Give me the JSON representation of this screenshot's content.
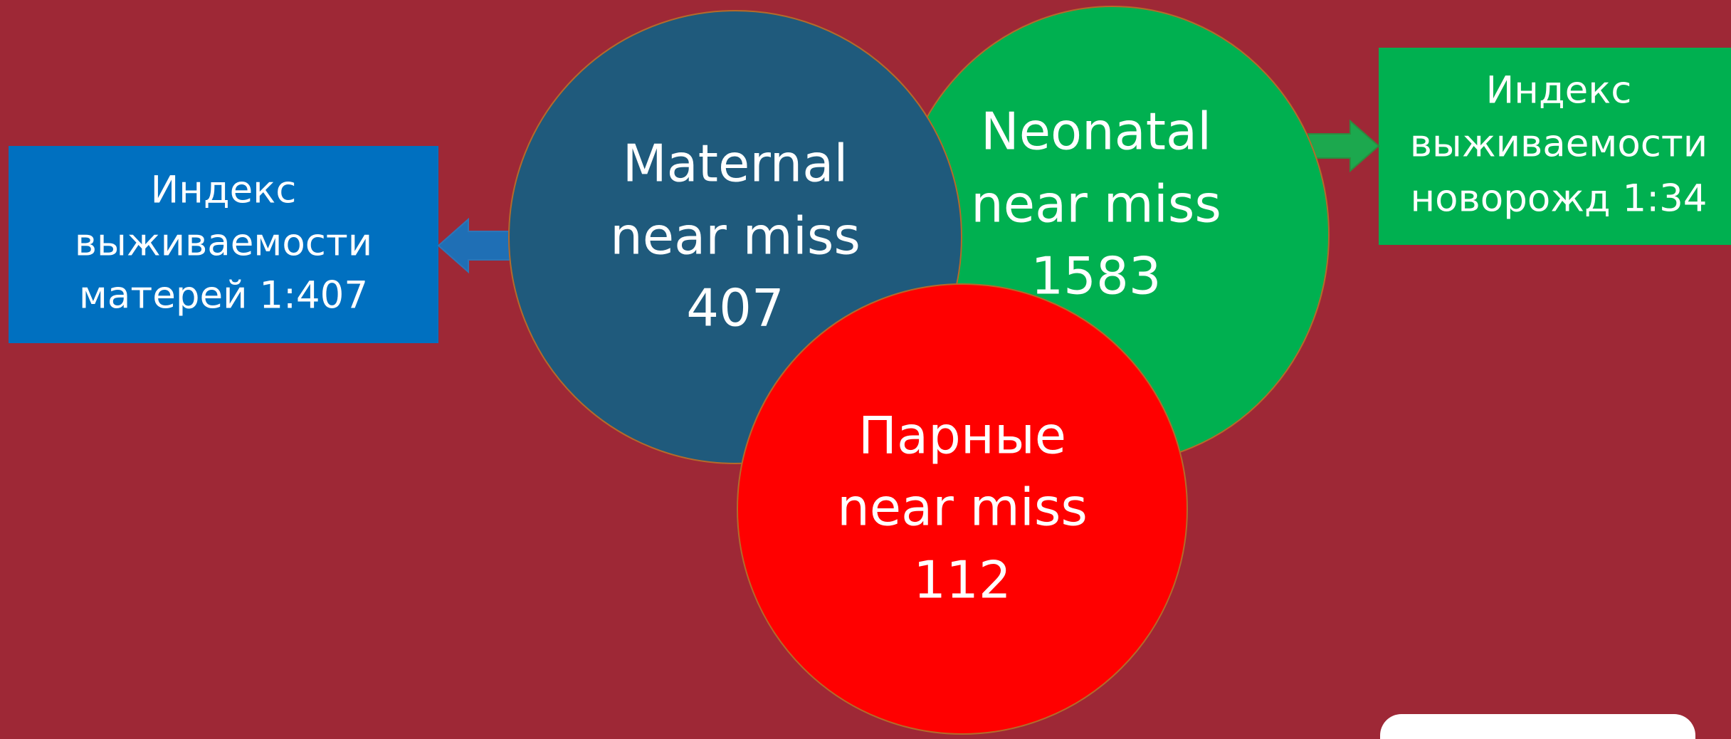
{
  "left_box": {
    "lines": [
      "Индекс",
      "выживаемости",
      "матерей 1:407"
    ]
  },
  "right_box": {
    "lines": [
      "Индекс",
      "выживаемости",
      "новорожд 1:34"
    ]
  },
  "circles": [
    {
      "lines": [
        "Maternal",
        "near miss",
        "407"
      ]
    },
    {
      "lines": [
        "Neonatal",
        "near miss",
        "1583"
      ]
    },
    {
      "lines": [
        "Парные",
        "near miss",
        "112"
      ]
    }
  ]
}
